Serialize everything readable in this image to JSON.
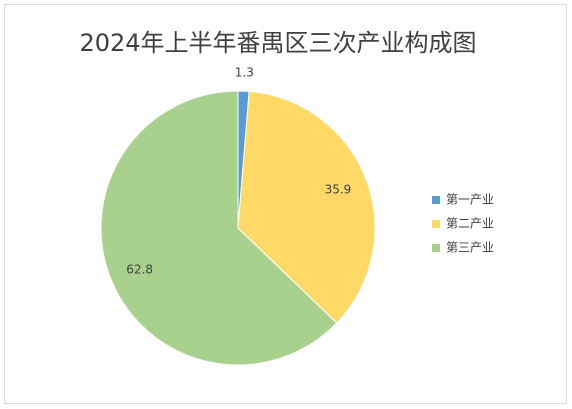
{
  "chart_data": {
    "type": "pie",
    "title": "2024年上半年番禺区三次产业构成图",
    "categories": [
      "第一产业",
      "第二产业",
      "第三产业"
    ],
    "values": [
      1.3,
      35.9,
      62.8
    ],
    "colors": [
      "#5b9bd5",
      "#ffd966",
      "#a9d18e"
    ],
    "legend": "right"
  }
}
